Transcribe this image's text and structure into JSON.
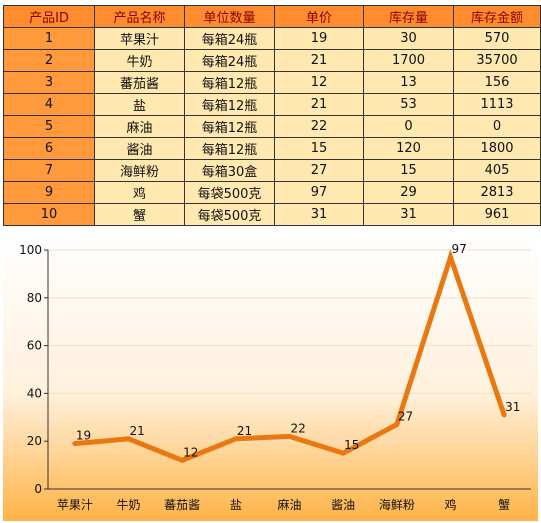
{
  "table": {
    "columns": [
      "产品ID",
      "产品名称",
      "单位数量",
      "单价",
      "库存量",
      "库存金额"
    ],
    "rows": [
      [
        "1",
        "苹果汁",
        "每箱24瓶",
        "19",
        "30",
        "570"
      ],
      [
        "2",
        "牛奶",
        "每箱24瓶",
        "21",
        "1700",
        "35700"
      ],
      [
        "3",
        "蕃茄酱",
        "每箱12瓶",
        "12",
        "13",
        "156"
      ],
      [
        "4",
        "盐",
        "每箱12瓶",
        "21",
        "53",
        "1113"
      ],
      [
        "5",
        "麻油",
        "每箱12瓶",
        "22",
        "0",
        "0"
      ],
      [
        "6",
        "酱油",
        "每箱12瓶",
        "15",
        "120",
        "1800"
      ],
      [
        "7",
        "海鲜粉",
        "每箱30盒",
        "27",
        "15",
        "405"
      ],
      [
        "9",
        "鸡",
        "每袋500克",
        "97",
        "29",
        "2813"
      ],
      [
        "10",
        "蟹",
        "每袋500克",
        "31",
        "31",
        "961"
      ]
    ]
  },
  "chart_data": {
    "type": "line",
    "categories": [
      "苹果汁",
      "牛奶",
      "蕃茄酱",
      "盐",
      "麻油",
      "酱油",
      "海鲜粉",
      "鸡",
      "蟹"
    ],
    "series": [
      {
        "values": [
          19,
          21,
          12,
          21,
          22,
          15,
          27,
          97,
          31
        ]
      }
    ],
    "title": "",
    "xlabel": "",
    "ylabel": "",
    "ylim": [
      0,
      100
    ],
    "yticks": [
      "0",
      "20",
      "40",
      "60",
      "80",
      "100"
    ],
    "data_labels": true,
    "grid": true,
    "legend": "none",
    "colors": {
      "line": "#e8780f",
      "header_bg": "#ff8c2e",
      "header_text": "#8b0000",
      "id_bg": "#ff9a3c",
      "cell_bg": "#ffe9b0",
      "gradient_top": "#ffffff",
      "gradient_bottom": "#ffb347"
    }
  }
}
